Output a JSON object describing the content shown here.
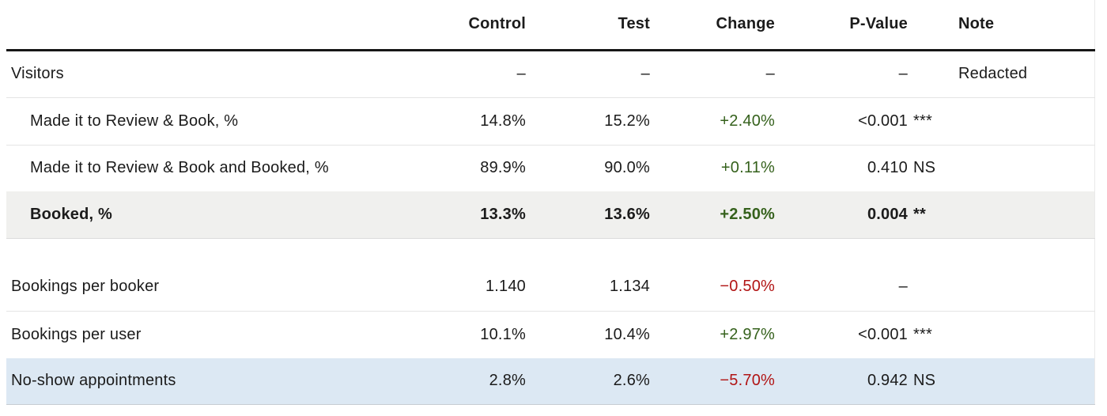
{
  "theme": {
    "green": "#35611c",
    "red": "#b11414",
    "neutral": "#1b1b1b",
    "row_gray": "#f0f0ee",
    "row_blue": "#dce8f3"
  },
  "table": {
    "columns": {
      "control": "Control",
      "test": "Test",
      "change": "Change",
      "pvalue": "P-Value",
      "note": "Note"
    },
    "rows": [
      {
        "metric": "Visitors",
        "control": "–",
        "test": "–",
        "change": "–",
        "change_color": "neutral",
        "pvalue": "–",
        "sig": "",
        "note": "Redacted"
      },
      {
        "metric": "Made it to Review & Book, %",
        "control": "14.8%",
        "test": "15.2%",
        "change": "+2.40%",
        "change_color": "green",
        "pvalue": "<0.001",
        "sig": "***",
        "note": ""
      },
      {
        "metric": "Made it to Review & Book and Booked, %",
        "control": "89.9%",
        "test": "90.0%",
        "change": "+0.11%",
        "change_color": "green",
        "pvalue": "0.410",
        "sig": "NS",
        "note": ""
      },
      {
        "metric": "Booked, %",
        "control": "13.3%",
        "test": "13.6%",
        "change": "+2.50%",
        "change_color": "green",
        "pvalue": "0.004",
        "sig": "**",
        "note": ""
      },
      {
        "metric": "Bookings per booker",
        "control": "1.140",
        "test": "1.134",
        "change": "−0.50%",
        "change_color": "red",
        "pvalue": "–",
        "sig": "",
        "note": ""
      },
      {
        "metric": "Bookings per user",
        "control": "10.1%",
        "test": "10.4%",
        "change": "+2.97%",
        "change_color": "green",
        "pvalue": "<0.001",
        "sig": "***",
        "note": ""
      },
      {
        "metric": "No-show appointments",
        "control": "2.8%",
        "test": "2.6%",
        "change": "−5.70%",
        "change_color": "red",
        "pvalue": "0.942",
        "sig": "NS",
        "note": ""
      }
    ]
  }
}
